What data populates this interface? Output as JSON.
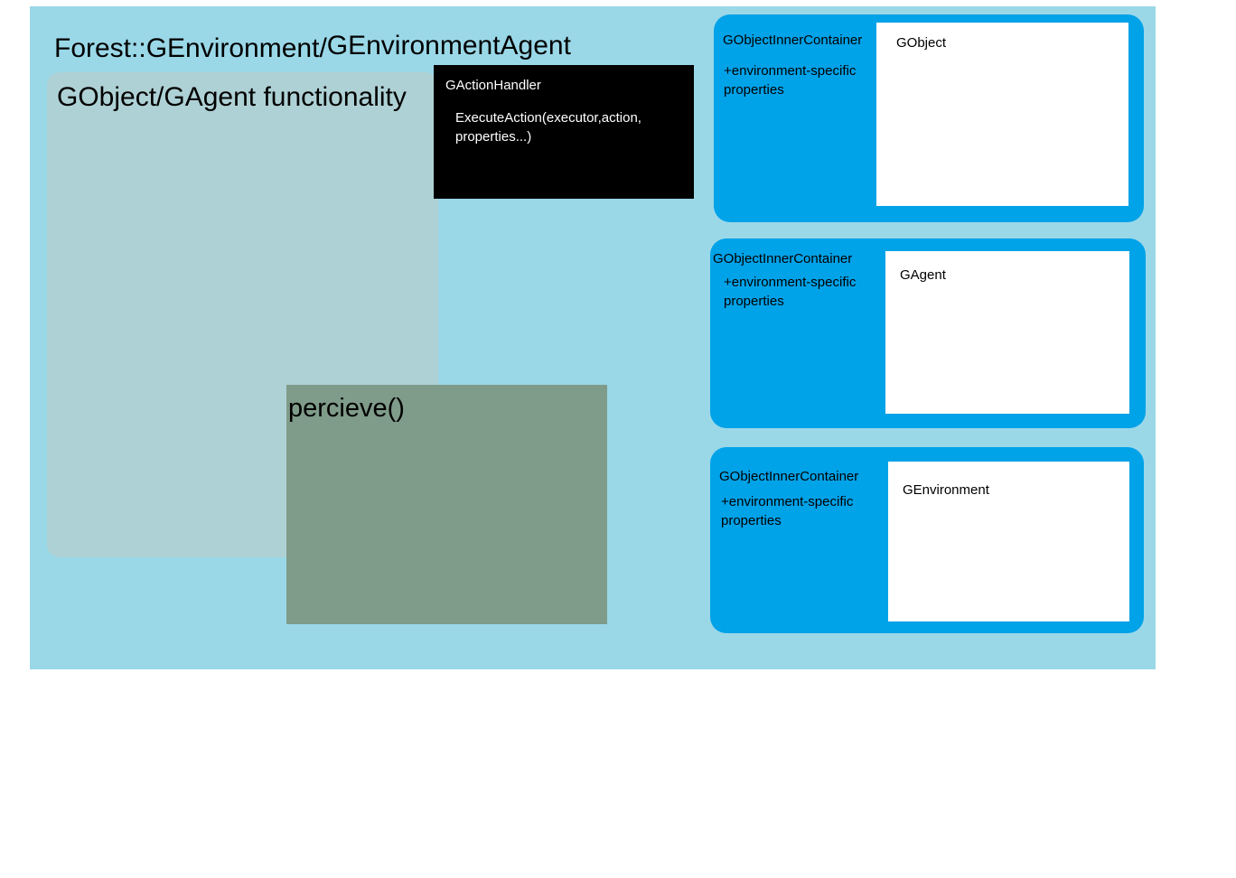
{
  "environment": {
    "title_main": "Forest::GEnvironment",
    "title_separator": "/",
    "title_agent": "GEnvironmentAgent"
  },
  "functionality": {
    "title": "GObject/GAgent functionality"
  },
  "action_handler": {
    "title": "GActionHandler",
    "method": "ExecuteAction(executor,action, properties...)"
  },
  "perceive": {
    "label": "percieve()"
  },
  "containers": [
    {
      "title": "GObjectInnerContainer",
      "properties": "+environment-specific properties",
      "inner_label": "GObject"
    },
    {
      "title": "GObjectInnerContainer",
      "properties": "+environment-specific properties",
      "inner_label": "GAgent"
    },
    {
      "title": "GObjectInnerContainer",
      "properties": "+environment-specific properties",
      "inner_label": "GEnvironment"
    }
  ],
  "colors": {
    "environment_bg": "#9ad8e8",
    "functionality_bg": "#aed1d5",
    "handler_bg": "#000000",
    "perceive_bg": "#7f9b89",
    "container_bg": "#00a2e8",
    "inner_bg": "#ffffff"
  }
}
